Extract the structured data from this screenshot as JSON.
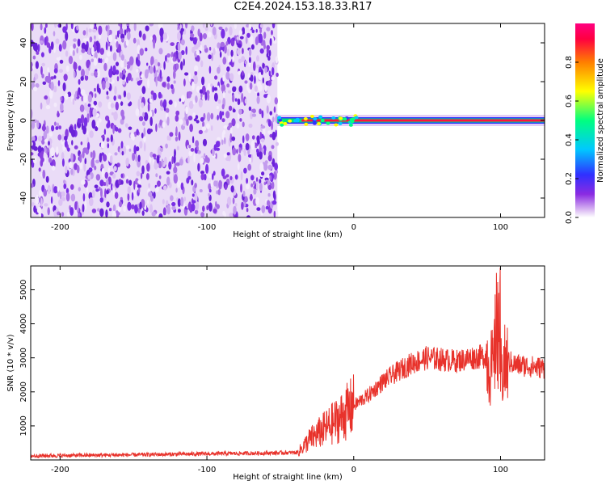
{
  "title": "C2E4.2024.153.18.33.R17",
  "colors": {
    "noise": "#7a2fe6",
    "snr_line": "#e8322b",
    "axis": "#000000",
    "colorbar": [
      "#ffffff",
      "#d9b8f2",
      "#8a2be2",
      "#3030ff",
      "#00c8ff",
      "#00ff80",
      "#ffff00",
      "#ff7f00",
      "#ff0040",
      "#ff0080"
    ]
  },
  "chart_data": [
    {
      "type": "heatmap",
      "xlabel": "Height of straight line (km)",
      "ylabel": "Frequency (Hz)",
      "xlim": [
        -220,
        130
      ],
      "ylim": [
        -50,
        50
      ],
      "x_ticks": [
        -200,
        -100,
        0,
        100
      ],
      "y_ticks": [
        -40,
        -20,
        0,
        20,
        40
      ],
      "noise_region_x": [
        -220,
        -52
      ],
      "signal_track": {
        "x": [
          -52,
          130
        ],
        "frequency": 0
      },
      "colorbar": {
        "label": "Normalized spectral amplitude",
        "range": [
          0,
          1
        ],
        "ticks": [
          0.0,
          0.2,
          0.4,
          0.6,
          0.8
        ]
      }
    },
    {
      "type": "line",
      "xlabel": "Height of straight line (km)",
      "ylabel": "SNR (10 * v/v)",
      "xlim": [
        -220,
        130
      ],
      "ylim": [
        0,
        5700
      ],
      "x_ticks": [
        -200,
        -100,
        0,
        100
      ],
      "y_ticks": [
        1000,
        2000,
        3000,
        4000,
        5000
      ],
      "series": [
        {
          "x": [
            -220,
            -150,
            -100,
            -60,
            -38,
            -30,
            -20,
            -10,
            0,
            10,
            20,
            30,
            40,
            50,
            60,
            70,
            80,
            90,
            95,
            98,
            100,
            102,
            105,
            110,
            120,
            130
          ],
          "values": [
            120,
            150,
            180,
            200,
            220,
            600,
            900,
            1200,
            1600,
            1900,
            2300,
            2600,
            2850,
            3000,
            2950,
            2900,
            3000,
            3050,
            2600,
            4000,
            2500,
            2700,
            2900,
            2800,
            2750,
            2700
          ]
        }
      ]
    }
  ]
}
